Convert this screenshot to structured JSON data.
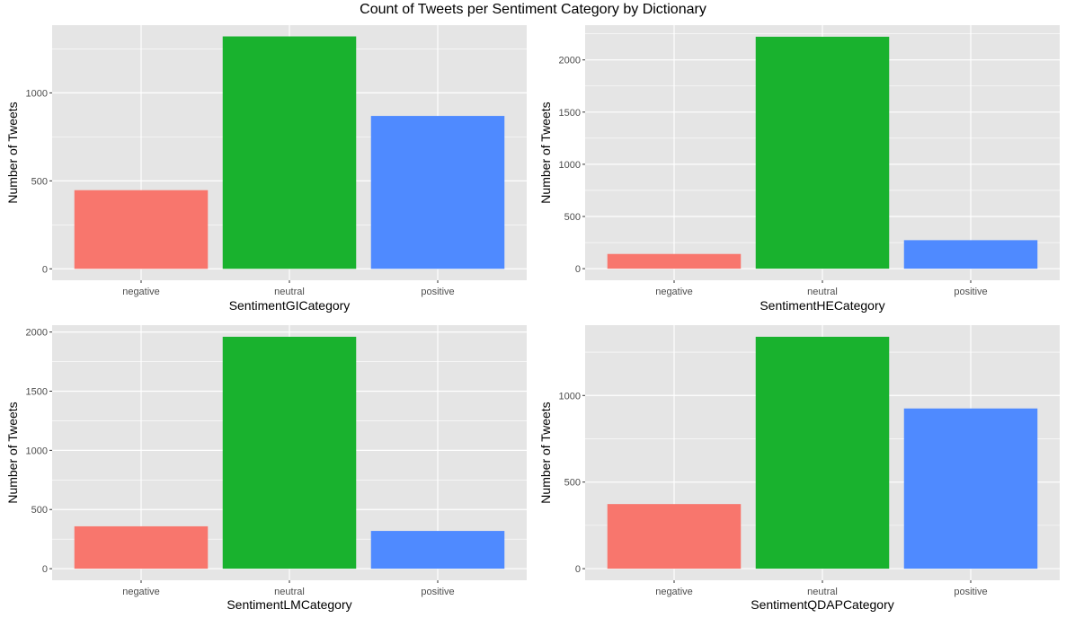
{
  "title": "Count of Tweets per Sentiment Category by Dictionary",
  "colors": {
    "panel_bg": "#e5e5e5",
    "grid": "#ffffff",
    "tick_text": "#4d4d4d",
    "negative": "#f8766d",
    "neutral": "#19b22e",
    "positive": "#4f8aff"
  },
  "chart_data": [
    {
      "type": "bar",
      "xlabel": "SentimentGICategory",
      "ylabel": "Number of Tweets",
      "categories": [
        "negative",
        "neutral",
        "positive"
      ],
      "values": [
        447,
        1321,
        869
      ],
      "ylim": [
        -65,
        1385
      ],
      "yticks": [
        0,
        500,
        1000
      ],
      "grid": true,
      "legend": "none"
    },
    {
      "type": "bar",
      "xlabel": "SentimentHECategory",
      "ylabel": "Number of Tweets",
      "categories": [
        "negative",
        "neutral",
        "positive"
      ],
      "values": [
        141,
        2222,
        273
      ],
      "ylim": [
        -111,
        2333
      ],
      "yticks": [
        0,
        500,
        1000,
        1500,
        2000
      ],
      "grid": true,
      "legend": "none"
    },
    {
      "type": "bar",
      "xlabel": "SentimentLMCategory",
      "ylabel": "Number of Tweets",
      "categories": [
        "negative",
        "neutral",
        "positive"
      ],
      "values": [
        358,
        1960,
        319
      ],
      "ylim": [
        -98,
        2058
      ],
      "yticks": [
        0,
        500,
        1000,
        1500,
        2000
      ],
      "grid": true,
      "legend": "none"
    },
    {
      "type": "bar",
      "xlabel": "SentimentQDAPCategory",
      "ylabel": "Number of Tweets",
      "categories": [
        "negative",
        "neutral",
        "positive"
      ],
      "values": [
        373,
        1339,
        925
      ],
      "ylim": [
        -67,
        1406
      ],
      "yticks": [
        0,
        500,
        1000
      ],
      "grid": true,
      "legend": "none"
    }
  ]
}
